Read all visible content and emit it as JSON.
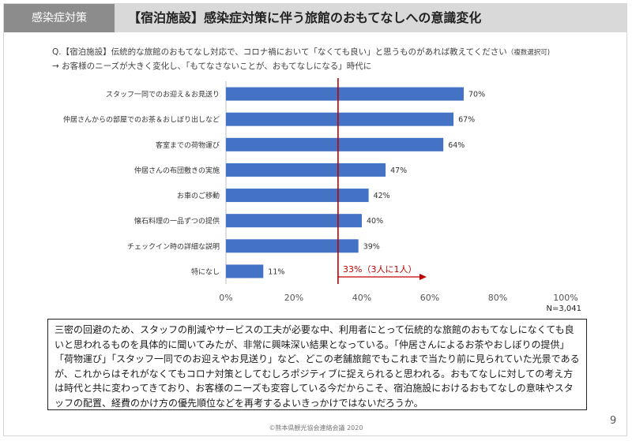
{
  "header": {
    "tag": "感染症対策",
    "title": "【宿泊施設】感染症対策に伴う旅館のおもてなしへの意識変化"
  },
  "question": {
    "line1": "Q.【宿泊施設】伝統的な旅館のおもてなし対応で、コロナ禍において「なくても良い」と思うものがあれば教えてください",
    "line1_note": "（複数選択可)",
    "line2": "→ お客様のニーズが大きく変化し、「もてなさないことが、おもてなしになる」時代に"
  },
  "chart_data": {
    "type": "bar",
    "orientation": "horizontal",
    "categories": [
      "スタッフ一同でのお迎え＆お見送り",
      "仲居さんからの部屋でのお茶＆おしぼり出しなど",
      "客室までの荷物運び",
      "仲居さんの布団敷きの実施",
      "お車のご移動",
      "懐石料理の一品ずつの提供",
      "チェックイン時の詳細な説明",
      "特になし"
    ],
    "values": [
      70,
      67,
      64,
      47,
      42,
      40,
      39,
      11
    ],
    "value_labels": [
      "70%",
      "67%",
      "64%",
      "47%",
      "42%",
      "40%",
      "39%",
      "11%"
    ],
    "xlim": [
      0,
      100
    ],
    "xticks": [
      "0%",
      "20%",
      "40%",
      "60%",
      "80%",
      "100%"
    ],
    "bar_color": "#4472c4",
    "reference_value": 33,
    "reference_label": "33%（3人に1人）",
    "reference_color": "#c00000",
    "sample_size": "N=3,041"
  },
  "summary": "三密の回避のため、スタッフの削減やサービスの工夫が必要な中、利用者にとって伝統的な旅館のおもてなしになくても良いと思われるものを具体的に聞いてみたが、非常に興味深い結果となっている。「仲居さんによるお茶やおしぼりの提供」「荷物運び」「スタッフ一同でのお迎えやお見送り」など、どこの老舗旅館でもこれまで当たり前に見られていた光景であるが、これからはそれがなくてもコロナ対策としてむしろポジティブに捉えられると思われる。おもてなしに対しての考え方は時代と共に変わってきており、お客様のニーズも変容している今だからこそ、宿泊施設におけるおもてなしの意味やスタッフの配置、経費のかけ方の優先順位などを再考するよいきっかけではないだろうか。",
  "page_number": "9",
  "footer": "©熊本県観光協会連絡会議 2020"
}
